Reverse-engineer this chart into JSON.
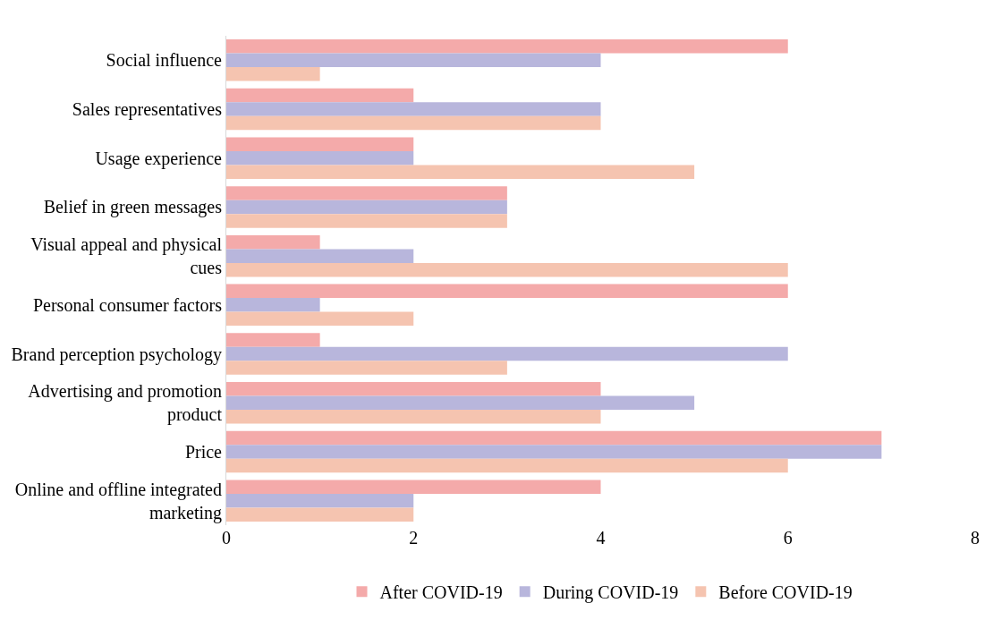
{
  "chart_data": {
    "type": "bar",
    "orientation": "horizontal",
    "categories": [
      "Social influence",
      "Sales representatives",
      "Usage experience",
      "Belief in green messages",
      "Visual appeal and physical cues",
      "Personal consumer factors",
      "Brand perception psychology",
      "Advertising and promotion product",
      "Price",
      "Online and offline integrated marketing"
    ],
    "series": [
      {
        "name": "After COVID-19",
        "color": "#f4aaaa",
        "values": [
          6,
          2,
          2,
          3,
          1,
          6,
          1,
          4,
          7,
          4
        ]
      },
      {
        "name": "During COVID-19",
        "color": "#b8b6dc",
        "values": [
          4,
          4,
          2,
          3,
          2,
          1,
          6,
          5,
          7,
          2
        ]
      },
      {
        "name": "Before COVID-19",
        "color": "#f5c4b0",
        "values": [
          1,
          4,
          5,
          3,
          6,
          2,
          3,
          4,
          6,
          2
        ]
      }
    ],
    "xlim": [
      0,
      8
    ],
    "xticks": [
      0,
      2,
      4,
      6,
      8
    ],
    "grid": false,
    "legend": "bottom"
  }
}
